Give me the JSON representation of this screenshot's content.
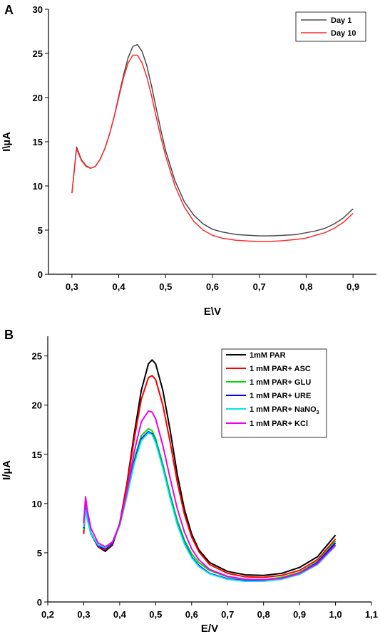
{
  "chart_data": [
    {
      "panel": "A",
      "type": "line",
      "xlabel": "E\\V",
      "ylabel": "I\\µA",
      "xlim": [
        0.25,
        0.95
      ],
      "ylim": [
        0,
        30
      ],
      "xticks": [
        0.3,
        0.4,
        0.5,
        0.6,
        0.7,
        0.8,
        0.9
      ],
      "xtick_labels": [
        "0,3",
        "0,4",
        "0,5",
        "0,6",
        "0,7",
        "0,8",
        "0,9"
      ],
      "yticks": [
        0,
        5,
        10,
        15,
        20,
        25,
        30
      ],
      "ytick_labels": [
        "0",
        "5",
        "10",
        "15",
        "20",
        "25",
        "30"
      ],
      "legend_position": "top-right",
      "grid": false,
      "series": [
        {
          "name": "Day 1",
          "color": "#4a4a4a",
          "points": [
            [
              0.3,
              9.2
            ],
            [
              0.31,
              14.4
            ],
            [
              0.32,
              13.0
            ],
            [
              0.33,
              12.3
            ],
            [
              0.34,
              12.0
            ],
            [
              0.35,
              12.2
            ],
            [
              0.36,
              13.0
            ],
            [
              0.37,
              14.2
            ],
            [
              0.38,
              15.8
            ],
            [
              0.39,
              17.8
            ],
            [
              0.4,
              20.2
            ],
            [
              0.41,
              22.5
            ],
            [
              0.42,
              24.5
            ],
            [
              0.43,
              25.8
            ],
            [
              0.44,
              26.0
            ],
            [
              0.45,
              25.2
            ],
            [
              0.46,
              23.6
            ],
            [
              0.47,
              21.3
            ],
            [
              0.48,
              18.8
            ],
            [
              0.49,
              16.3
            ],
            [
              0.5,
              14.0
            ],
            [
              0.52,
              10.6
            ],
            [
              0.54,
              8.2
            ],
            [
              0.56,
              6.7
            ],
            [
              0.58,
              5.7
            ],
            [
              0.6,
              5.1
            ],
            [
              0.62,
              4.8
            ],
            [
              0.65,
              4.5
            ],
            [
              0.68,
              4.4
            ],
            [
              0.7,
              4.35
            ],
            [
              0.72,
              4.35
            ],
            [
              0.75,
              4.4
            ],
            [
              0.78,
              4.5
            ],
            [
              0.8,
              4.7
            ],
            [
              0.82,
              4.9
            ],
            [
              0.84,
              5.2
            ],
            [
              0.86,
              5.7
            ],
            [
              0.88,
              6.4
            ],
            [
              0.9,
              7.4
            ]
          ]
        },
        {
          "name": "Day 10",
          "color": "#ff2a2a",
          "points": [
            [
              0.3,
              9.2
            ],
            [
              0.31,
              14.2
            ],
            [
              0.32,
              12.9
            ],
            [
              0.33,
              12.2
            ],
            [
              0.34,
              12.0
            ],
            [
              0.35,
              12.2
            ],
            [
              0.36,
              13.0
            ],
            [
              0.37,
              14.2
            ],
            [
              0.38,
              15.8
            ],
            [
              0.39,
              17.8
            ],
            [
              0.4,
              20.0
            ],
            [
              0.41,
              22.2
            ],
            [
              0.42,
              23.9
            ],
            [
              0.43,
              24.8
            ],
            [
              0.44,
              24.8
            ],
            [
              0.45,
              23.9
            ],
            [
              0.46,
              22.3
            ],
            [
              0.47,
              20.2
            ],
            [
              0.48,
              17.8
            ],
            [
              0.49,
              15.5
            ],
            [
              0.5,
              13.4
            ],
            [
              0.52,
              10.0
            ],
            [
              0.54,
              7.6
            ],
            [
              0.56,
              6.0
            ],
            [
              0.58,
              5.0
            ],
            [
              0.6,
              4.4
            ],
            [
              0.62,
              4.1
            ],
            [
              0.65,
              3.85
            ],
            [
              0.68,
              3.75
            ],
            [
              0.7,
              3.7
            ],
            [
              0.72,
              3.7
            ],
            [
              0.75,
              3.8
            ],
            [
              0.78,
              3.95
            ],
            [
              0.8,
              4.1
            ],
            [
              0.82,
              4.4
            ],
            [
              0.84,
              4.7
            ],
            [
              0.86,
              5.2
            ],
            [
              0.88,
              5.9
            ],
            [
              0.9,
              6.9
            ]
          ]
        }
      ]
    },
    {
      "panel": "B",
      "type": "line",
      "xlabel": "E/V",
      "ylabel": "I/µA",
      "xlim": [
        0.2,
        1.1
      ],
      "ylim": [
        0,
        27
      ],
      "xticks": [
        0.2,
        0.3,
        0.4,
        0.5,
        0.6,
        0.7,
        0.8,
        0.9,
        1.0,
        1.1
      ],
      "xtick_labels": [
        "0,2",
        "0,3",
        "0,4",
        "0,5",
        "0,6",
        "0,7",
        "0,8",
        "0,9",
        "1,0",
        "1,1"
      ],
      "yticks": [
        0,
        5,
        10,
        15,
        20,
        25
      ],
      "ytick_labels": [
        "0",
        "5",
        "10",
        "15",
        "20",
        "25"
      ],
      "legend_position": "top-right",
      "grid": false,
      "series": [
        {
          "name": "1mM PAR",
          "color": "#000000",
          "points": [
            [
              0.3,
              7.0
            ],
            [
              0.305,
              10.0
            ],
            [
              0.31,
              8.8
            ],
            [
              0.32,
              7.0
            ],
            [
              0.34,
              5.6
            ],
            [
              0.36,
              5.15
            ],
            [
              0.38,
              5.8
            ],
            [
              0.4,
              8.0
            ],
            [
              0.42,
              12.0
            ],
            [
              0.44,
              17.0
            ],
            [
              0.46,
              21.5
            ],
            [
              0.48,
              24.2
            ],
            [
              0.49,
              24.6
            ],
            [
              0.5,
              24.2
            ],
            [
              0.52,
              21.5
            ],
            [
              0.54,
              17.5
            ],
            [
              0.56,
              13.0
            ],
            [
              0.58,
              9.4
            ],
            [
              0.6,
              6.9
            ],
            [
              0.62,
              5.3
            ],
            [
              0.65,
              4.0
            ],
            [
              0.7,
              3.1
            ],
            [
              0.75,
              2.75
            ],
            [
              0.8,
              2.7
            ],
            [
              0.85,
              2.9
            ],
            [
              0.9,
              3.5
            ],
            [
              0.95,
              4.6
            ],
            [
              1.0,
              6.8
            ]
          ]
        },
        {
          "name": "1 mM PAR+ ASC",
          "color": "#ff0000",
          "points": [
            [
              0.3,
              6.9
            ],
            [
              0.305,
              9.9
            ],
            [
              0.31,
              8.7
            ],
            [
              0.32,
              6.9
            ],
            [
              0.34,
              5.6
            ],
            [
              0.36,
              5.3
            ],
            [
              0.38,
              5.9
            ],
            [
              0.4,
              8.0
            ],
            [
              0.42,
              11.8
            ],
            [
              0.44,
              16.5
            ],
            [
              0.46,
              20.6
            ],
            [
              0.48,
              22.8
            ],
            [
              0.49,
              23.0
            ],
            [
              0.5,
              22.6
            ],
            [
              0.52,
              20.0
            ],
            [
              0.54,
              16.3
            ],
            [
              0.56,
              12.2
            ],
            [
              0.58,
              8.9
            ],
            [
              0.6,
              6.6
            ],
            [
              0.62,
              5.1
            ],
            [
              0.65,
              3.8
            ],
            [
              0.7,
              2.9
            ],
            [
              0.75,
              2.55
            ],
            [
              0.8,
              2.5
            ],
            [
              0.85,
              2.7
            ],
            [
              0.9,
              3.2
            ],
            [
              0.95,
              4.3
            ],
            [
              1.0,
              6.4
            ]
          ]
        },
        {
          "name": "1 mM PAR+ GLU",
          "color": "#00dd00",
          "points": [
            [
              0.3,
              7.3
            ],
            [
              0.305,
              9.6
            ],
            [
              0.31,
              8.6
            ],
            [
              0.32,
              7.0
            ],
            [
              0.34,
              5.7
            ],
            [
              0.36,
              5.4
            ],
            [
              0.38,
              6.0
            ],
            [
              0.4,
              7.9
            ],
            [
              0.42,
              11.0
            ],
            [
              0.44,
              14.5
            ],
            [
              0.46,
              16.9
            ],
            [
              0.48,
              17.6
            ],
            [
              0.49,
              17.4
            ],
            [
              0.5,
              16.6
            ],
            [
              0.52,
              14.0
            ],
            [
              0.54,
              11.0
            ],
            [
              0.56,
              8.3
            ],
            [
              0.58,
              6.3
            ],
            [
              0.6,
              4.9
            ],
            [
              0.62,
              4.0
            ],
            [
              0.65,
              3.2
            ],
            [
              0.7,
              2.55
            ],
            [
              0.75,
              2.3
            ],
            [
              0.8,
              2.25
            ],
            [
              0.85,
              2.5
            ],
            [
              0.9,
              3.0
            ],
            [
              0.95,
              4.1
            ],
            [
              1.0,
              6.2
            ]
          ]
        },
        {
          "name": "1 mM PAR+ URE",
          "color": "#0000ff",
          "points": [
            [
              0.3,
              7.5
            ],
            [
              0.305,
              9.5
            ],
            [
              0.31,
              8.5
            ],
            [
              0.32,
              6.9
            ],
            [
              0.34,
              5.7
            ],
            [
              0.36,
              5.4
            ],
            [
              0.38,
              6.0
            ],
            [
              0.4,
              7.8
            ],
            [
              0.42,
              10.8
            ],
            [
              0.44,
              14.2
            ],
            [
              0.46,
              16.6
            ],
            [
              0.48,
              17.3
            ],
            [
              0.49,
              17.1
            ],
            [
              0.5,
              16.3
            ],
            [
              0.52,
              13.7
            ],
            [
              0.54,
              10.7
            ],
            [
              0.56,
              8.0
            ],
            [
              0.58,
              6.0
            ],
            [
              0.6,
              4.6
            ],
            [
              0.62,
              3.7
            ],
            [
              0.65,
              2.9
            ],
            [
              0.7,
              2.35
            ],
            [
              0.75,
              2.15
            ],
            [
              0.8,
              2.15
            ],
            [
              0.85,
              2.4
            ],
            [
              0.9,
              2.9
            ],
            [
              0.95,
              4.0
            ],
            [
              1.0,
              6.0
            ]
          ]
        },
        {
          "name": "1 mM PAR+ NaNO3",
          "color": "#00e5ee",
          "points": [
            [
              0.3,
              7.6
            ],
            [
              0.305,
              9.4
            ],
            [
              0.31,
              8.4
            ],
            [
              0.32,
              6.9
            ],
            [
              0.34,
              5.8
            ],
            [
              0.36,
              5.5
            ],
            [
              0.38,
              6.1
            ],
            [
              0.4,
              7.8
            ],
            [
              0.42,
              10.7
            ],
            [
              0.44,
              14.0
            ],
            [
              0.46,
              16.4
            ],
            [
              0.48,
              17.2
            ],
            [
              0.49,
              17.0
            ],
            [
              0.5,
              16.2
            ],
            [
              0.52,
              13.6
            ],
            [
              0.54,
              10.6
            ],
            [
              0.56,
              7.9
            ],
            [
              0.58,
              5.9
            ],
            [
              0.6,
              4.5
            ],
            [
              0.62,
              3.6
            ],
            [
              0.65,
              2.85
            ],
            [
              0.7,
              2.3
            ],
            [
              0.75,
              2.1
            ],
            [
              0.8,
              2.1
            ],
            [
              0.85,
              2.3
            ],
            [
              0.9,
              2.8
            ],
            [
              0.95,
              3.8
            ],
            [
              1.0,
              5.7
            ]
          ]
        },
        {
          "name": "1 mM PAR+ KCl",
          "color": "#ee00ee",
          "points": [
            [
              0.3,
              8.0
            ],
            [
              0.305,
              10.7
            ],
            [
              0.31,
              9.3
            ],
            [
              0.32,
              7.5
            ],
            [
              0.34,
              6.0
            ],
            [
              0.36,
              5.6
            ],
            [
              0.38,
              6.1
            ],
            [
              0.4,
              7.9
            ],
            [
              0.42,
              11.2
            ],
            [
              0.44,
              15.2
            ],
            [
              0.46,
              18.3
            ],
            [
              0.48,
              19.4
            ],
            [
              0.49,
              19.3
            ],
            [
              0.5,
              18.6
            ],
            [
              0.52,
              15.9
            ],
            [
              0.54,
              12.6
            ],
            [
              0.56,
              9.5
            ],
            [
              0.58,
              7.1
            ],
            [
              0.6,
              5.4
            ],
            [
              0.62,
              4.3
            ],
            [
              0.65,
              3.3
            ],
            [
              0.7,
              2.6
            ],
            [
              0.75,
              2.3
            ],
            [
              0.8,
              2.25
            ],
            [
              0.85,
              2.4
            ],
            [
              0.9,
              2.9
            ],
            [
              0.95,
              3.9
            ],
            [
              1.0,
              5.8
            ]
          ]
        }
      ]
    }
  ]
}
